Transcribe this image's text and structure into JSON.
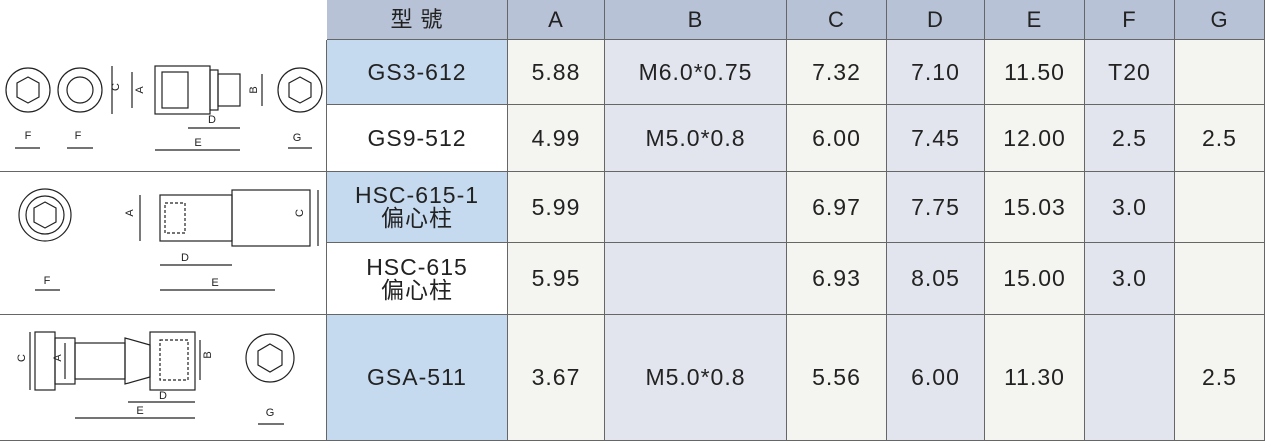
{
  "table": {
    "header": [
      "型 號",
      "A",
      "B",
      "C",
      "D",
      "E",
      "F",
      "G"
    ],
    "rows": [
      {
        "model": [
          "GS3-612"
        ],
        "cells": [
          "5.88",
          "M6.0*0.75",
          "7.32",
          "7.10",
          "11.50",
          "T20",
          null
        ]
      },
      {
        "model": [
          "GS9-512"
        ],
        "cells": [
          "4.99",
          "M5.0*0.8",
          "6.00",
          "7.45",
          "12.00",
          "2.5",
          "2.5"
        ]
      },
      {
        "model": [
          "HSC-615-1",
          "偏心柱"
        ],
        "cells": [
          "5.99",
          null,
          "6.97",
          "7.75",
          "15.03",
          "3.0",
          null
        ]
      },
      {
        "model": [
          "HSC-615",
          "偏心柱"
        ],
        "cells": [
          "5.95",
          null,
          "6.93",
          "8.05",
          "15.00",
          "3.0",
          null
        ]
      },
      {
        "model": [
          "GSA-511"
        ],
        "cells": [
          "3.67",
          "M5.0*0.8",
          "5.56",
          "6.00",
          "11.30",
          null,
          "2.5"
        ]
      }
    ]
  },
  "diagrams": [
    {
      "labels": [
        "F",
        "F",
        "C",
        "A",
        "B",
        "D",
        "E",
        "G"
      ]
    },
    {
      "labels": [
        "A",
        "C",
        "D",
        "E",
        "F"
      ]
    },
    {
      "labels": [
        "C",
        "A",
        "B",
        "D",
        "E",
        "G"
      ]
    }
  ]
}
